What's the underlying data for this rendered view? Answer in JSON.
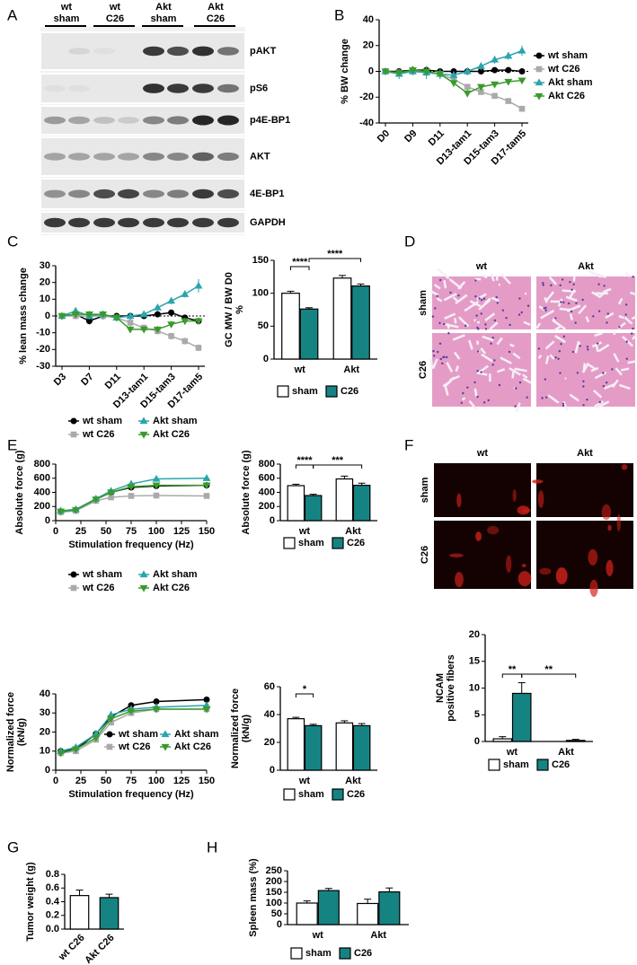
{
  "panel_labels": [
    "A",
    "B",
    "C",
    "D",
    "E",
    "F",
    "G",
    "H"
  ],
  "blot": {
    "groups": [
      [
        "wt",
        "sham"
      ],
      [
        "wt",
        "C26"
      ],
      [
        "Akt",
        "sham"
      ],
      [
        "Akt",
        "C26"
      ]
    ],
    "bands": [
      "pAKT",
      "pS6",
      "p4E-BP1",
      "AKT",
      "4E-BP1",
      "GAPDH"
    ]
  },
  "histology": {
    "columns": [
      "wt",
      "Akt"
    ],
    "rows": [
      "sham",
      "C26"
    ]
  },
  "immunofluorescence": {
    "columns": [
      "wt",
      "Akt"
    ],
    "rows": [
      "sham",
      "C26"
    ]
  },
  "chart_data": [
    {
      "type": "line",
      "ylabel": "% BW change",
      "categories": [
        "D0",
        null,
        "D9",
        null,
        "D11",
        null,
        "D13-tam1",
        null,
        "D15-tam3",
        null,
        "D17-tam5"
      ],
      "ylim": [
        -40,
        40
      ],
      "yticks": [
        -40,
        -20,
        0,
        20,
        40
      ],
      "zero_line": true,
      "legend": "right",
      "series": [
        {
          "name": "wt sham",
          "color": "#000000",
          "marker": "circle",
          "values": [
            0,
            0,
            1,
            1,
            0,
            0,
            0,
            0,
            1,
            1,
            0
          ],
          "errors": [
            0,
            1,
            3,
            2,
            2,
            2,
            2,
            1,
            1,
            1,
            1
          ]
        },
        {
          "name": "wt C26",
          "color": "#aaaaaa",
          "marker": "square",
          "values": [
            0,
            -1,
            0,
            -1,
            -2,
            -6,
            -12,
            -16,
            -19,
            -23,
            -29
          ],
          "errors": [
            0,
            2,
            3,
            3,
            3,
            2,
            2,
            2,
            2,
            2,
            2
          ]
        },
        {
          "name": "Akt sham",
          "color": "#2aa5ad",
          "marker": "triangle-up",
          "values": [
            0,
            -2,
            0,
            -1,
            -2,
            -3,
            0,
            4,
            9,
            12,
            16
          ],
          "errors": [
            0,
            4,
            3,
            5,
            4,
            3,
            3,
            3,
            3,
            3,
            4
          ]
        },
        {
          "name": "Akt C26",
          "color": "#3a9b2c",
          "marker": "triangle-down",
          "values": [
            0,
            -1,
            1,
            0,
            -2,
            -9,
            -17,
            -12,
            -10,
            -8,
            -7
          ],
          "errors": [
            0,
            2,
            3,
            3,
            3,
            3,
            3,
            2,
            2,
            2,
            2
          ]
        }
      ]
    },
    {
      "type": "line",
      "ylabel": "% lean mass change",
      "categories": [
        "D3",
        null,
        "D7",
        null,
        "D11",
        null,
        "D13-tam1",
        null,
        "D15-tam3",
        null,
        "D17-tam5"
      ],
      "ylim": [
        -30,
        30
      ],
      "yticks": [
        -30,
        -20,
        -10,
        0,
        10,
        20,
        30
      ],
      "zero_line": true,
      "series": [
        {
          "name": "wt sham",
          "color": "#000000",
          "marker": "circle",
          "values": [
            0,
            1,
            -3,
            0,
            0,
            0,
            0,
            1,
            2,
            -1,
            -3
          ],
          "errors": [
            1,
            2,
            2,
            2,
            1,
            1,
            1,
            1,
            1,
            1,
            1
          ]
        },
        {
          "name": "wt C26",
          "color": "#aaaaaa",
          "marker": "square",
          "values": [
            0,
            0,
            0,
            0,
            -1,
            -4,
            -7,
            -9,
            -12,
            -15,
            -19
          ],
          "errors": [
            1,
            2,
            2,
            2,
            1,
            2,
            2,
            2,
            2,
            2,
            2
          ]
        },
        {
          "name": "Akt sham",
          "color": "#2aa5ad",
          "marker": "triangle-up",
          "values": [
            0,
            3,
            0,
            1,
            -1,
            0,
            1,
            5,
            9,
            13,
            18
          ],
          "errors": [
            1,
            2,
            2,
            2,
            2,
            2,
            2,
            2,
            2,
            2,
            4
          ]
        },
        {
          "name": "Akt C26",
          "color": "#3a9b2c",
          "marker": "triangle-down",
          "values": [
            0,
            1,
            1,
            1,
            -1,
            -8,
            -8,
            -8,
            -5,
            -3,
            -3
          ],
          "errors": [
            1,
            2,
            2,
            2,
            2,
            2,
            2,
            2,
            2,
            2,
            2
          ]
        }
      ]
    },
    {
      "type": "bar",
      "ylabel_lines": [
        "GC MW / BW D0",
        "%"
      ],
      "categories": [
        "wt",
        "Akt"
      ],
      "ylim": [
        0,
        150
      ],
      "yticks": [
        0,
        50,
        100,
        150
      ],
      "legend": "bottom",
      "annotations": [
        "****",
        "****"
      ],
      "series": [
        {
          "name": "sham",
          "color": "#ffffff",
          "values": [
            100,
            123
          ],
          "errors": [
            3,
            4
          ]
        },
        {
          "name": "C26",
          "color": "#168383",
          "values": [
            76,
            111
          ],
          "errors": [
            2,
            3
          ]
        }
      ]
    },
    {
      "type": "line",
      "ylabel": "Absolute force (g)",
      "xlabel": "Stimulation frequency (Hz)",
      "x": [
        5,
        20,
        40,
        55,
        75,
        100,
        150
      ],
      "xlim": [
        0,
        150
      ],
      "xticks": [
        0,
        25,
        50,
        75,
        100,
        125,
        150
      ],
      "ylim": [
        0,
        800
      ],
      "yticks": [
        0,
        200,
        400,
        600,
        800
      ],
      "legend": "top",
      "series": [
        {
          "name": "wt sham",
          "color": "#000000",
          "marker": "circle",
          "values": [
            130,
            150,
            300,
            400,
            470,
            490,
            500
          ],
          "errors": [
            10,
            10,
            15,
            20,
            20,
            20,
            20
          ]
        },
        {
          "name": "wt C26",
          "color": "#aaaaaa",
          "marker": "square",
          "values": [
            120,
            140,
            280,
            330,
            350,
            355,
            350
          ],
          "errors": [
            10,
            10,
            15,
            15,
            15,
            15,
            15
          ]
        },
        {
          "name": "Akt sham",
          "color": "#2aa5ad",
          "marker": "triangle-up",
          "values": [
            140,
            160,
            310,
            420,
            520,
            590,
            600
          ],
          "errors": [
            15,
            15,
            20,
            30,
            35,
            35,
            35
          ]
        },
        {
          "name": "Akt C26",
          "color": "#3a9b2c",
          "marker": "triangle-down",
          "values": [
            130,
            150,
            300,
            400,
            480,
            500,
            500
          ],
          "errors": [
            10,
            10,
            15,
            25,
            25,
            25,
            25
          ]
        }
      ]
    },
    {
      "type": "bar",
      "ylabel": "Absolute force (g)",
      "categories": [
        "wt",
        "Akt"
      ],
      "ylim": [
        0,
        800
      ],
      "yticks": [
        0,
        200,
        400,
        600,
        800
      ],
      "legend": "bottom",
      "annotations": [
        "****",
        "***"
      ],
      "series": [
        {
          "name": "sham",
          "color": "#ffffff",
          "values": [
            495,
            590
          ],
          "errors": [
            20,
            40
          ]
        },
        {
          "name": "C26",
          "color": "#168383",
          "values": [
            355,
            500
          ],
          "errors": [
            18,
            30
          ]
        }
      ]
    },
    {
      "type": "line",
      "ylabel_lines": [
        "Normalized force",
        "(kN/g)"
      ],
      "xlabel": "Stimulation frequency (Hz)",
      "x": [
        5,
        20,
        40,
        55,
        75,
        100,
        150
      ],
      "xlim": [
        0,
        150
      ],
      "xticks": [
        0,
        25,
        50,
        75,
        100,
        125,
        150
      ],
      "ylim": [
        0,
        40
      ],
      "yticks": [
        0,
        10,
        20,
        30,
        40
      ],
      "legend": [
        "top",
        "inside"
      ],
      "series": [
        {
          "name": "wt sham",
          "color": "#000000",
          "marker": "circle",
          "values": [
            10,
            11,
            19,
            28,
            34,
            36,
            37
          ],
          "errors": [
            1,
            1,
            1,
            1,
            1,
            1,
            1
          ]
        },
        {
          "name": "wt C26",
          "color": "#aaaaaa",
          "marker": "square",
          "values": [
            9,
            10,
            16,
            25,
            30,
            32,
            32
          ],
          "errors": [
            1,
            1,
            1,
            1,
            1,
            1,
            1
          ]
        },
        {
          "name": "Akt sham",
          "color": "#2aa5ad",
          "marker": "triangle-up",
          "values": [
            10,
            12,
            19,
            29,
            32,
            33,
            34
          ],
          "errors": [
            1,
            1,
            2,
            2,
            2,
            2,
            2
          ]
        },
        {
          "name": "Akt C26",
          "color": "#3a9b2c",
          "marker": "triangle-down",
          "values": [
            9,
            11,
            17,
            27,
            31,
            32,
            32
          ],
          "errors": [
            1,
            1,
            1,
            1,
            1,
            1,
            1
          ]
        }
      ]
    },
    {
      "type": "bar",
      "ylabel_lines": [
        "Normalized force",
        "(kN/g)"
      ],
      "categories": [
        "wt",
        "Akt"
      ],
      "ylim": [
        0,
        60
      ],
      "yticks": [
        0,
        20,
        40,
        60
      ],
      "legend": "bottom",
      "annotations": [
        "*"
      ],
      "series": [
        {
          "name": "sham",
          "color": "#ffffff",
          "values": [
            37,
            34
          ],
          "errors": [
            1,
            1.5
          ]
        },
        {
          "name": "C26",
          "color": "#168383",
          "values": [
            32,
            32
          ],
          "errors": [
            1,
            1.5
          ]
        }
      ]
    },
    {
      "type": "bar",
      "ylabel_lines": [
        "NCAM",
        "positive fibers"
      ],
      "categories": [
        "wt",
        "Akt"
      ],
      "ylim": [
        0,
        20
      ],
      "yticks": [
        0,
        5,
        10,
        15,
        20
      ],
      "legend": "bottom",
      "annotations": [
        "**",
        "**"
      ],
      "series": [
        {
          "name": "sham",
          "color": "#ffffff",
          "values": [
            0.5,
            0
          ],
          "errors": [
            0.4,
            0
          ]
        },
        {
          "name": "C26",
          "color": "#168383",
          "values": [
            9,
            0.2
          ],
          "errors": [
            2,
            0.2
          ]
        }
      ]
    },
    {
      "type": "bar",
      "ylabel": "Tumor weight (g)",
      "categories": [
        "wt C26",
        "Akt C26"
      ],
      "values": [
        0.49,
        0.46
      ],
      "errors": [
        0.08,
        0.05
      ],
      "colors": [
        "#ffffff",
        "#168383"
      ],
      "rotate_labels": true,
      "ylim": [
        0,
        0.8
      ],
      "yticks": [
        {
          "value": 0,
          "label": "0.0"
        },
        0.2,
        0.4,
        0.6,
        0.8
      ]
    },
    {
      "type": "bar",
      "ylabel": "Spleen mass (%)",
      "categories": [
        "wt",
        "Akt"
      ],
      "ylim": [
        0,
        250
      ],
      "yticks": [
        0,
        50,
        100,
        150,
        200,
        250
      ],
      "legend": "bottom",
      "series": [
        {
          "name": "sham",
          "color": "#ffffff",
          "values": [
            100,
            98
          ],
          "errors": [
            10,
            20
          ]
        },
        {
          "name": "C26",
          "color": "#168383",
          "values": [
            158,
            152
          ],
          "errors": [
            10,
            18
          ]
        }
      ]
    }
  ]
}
